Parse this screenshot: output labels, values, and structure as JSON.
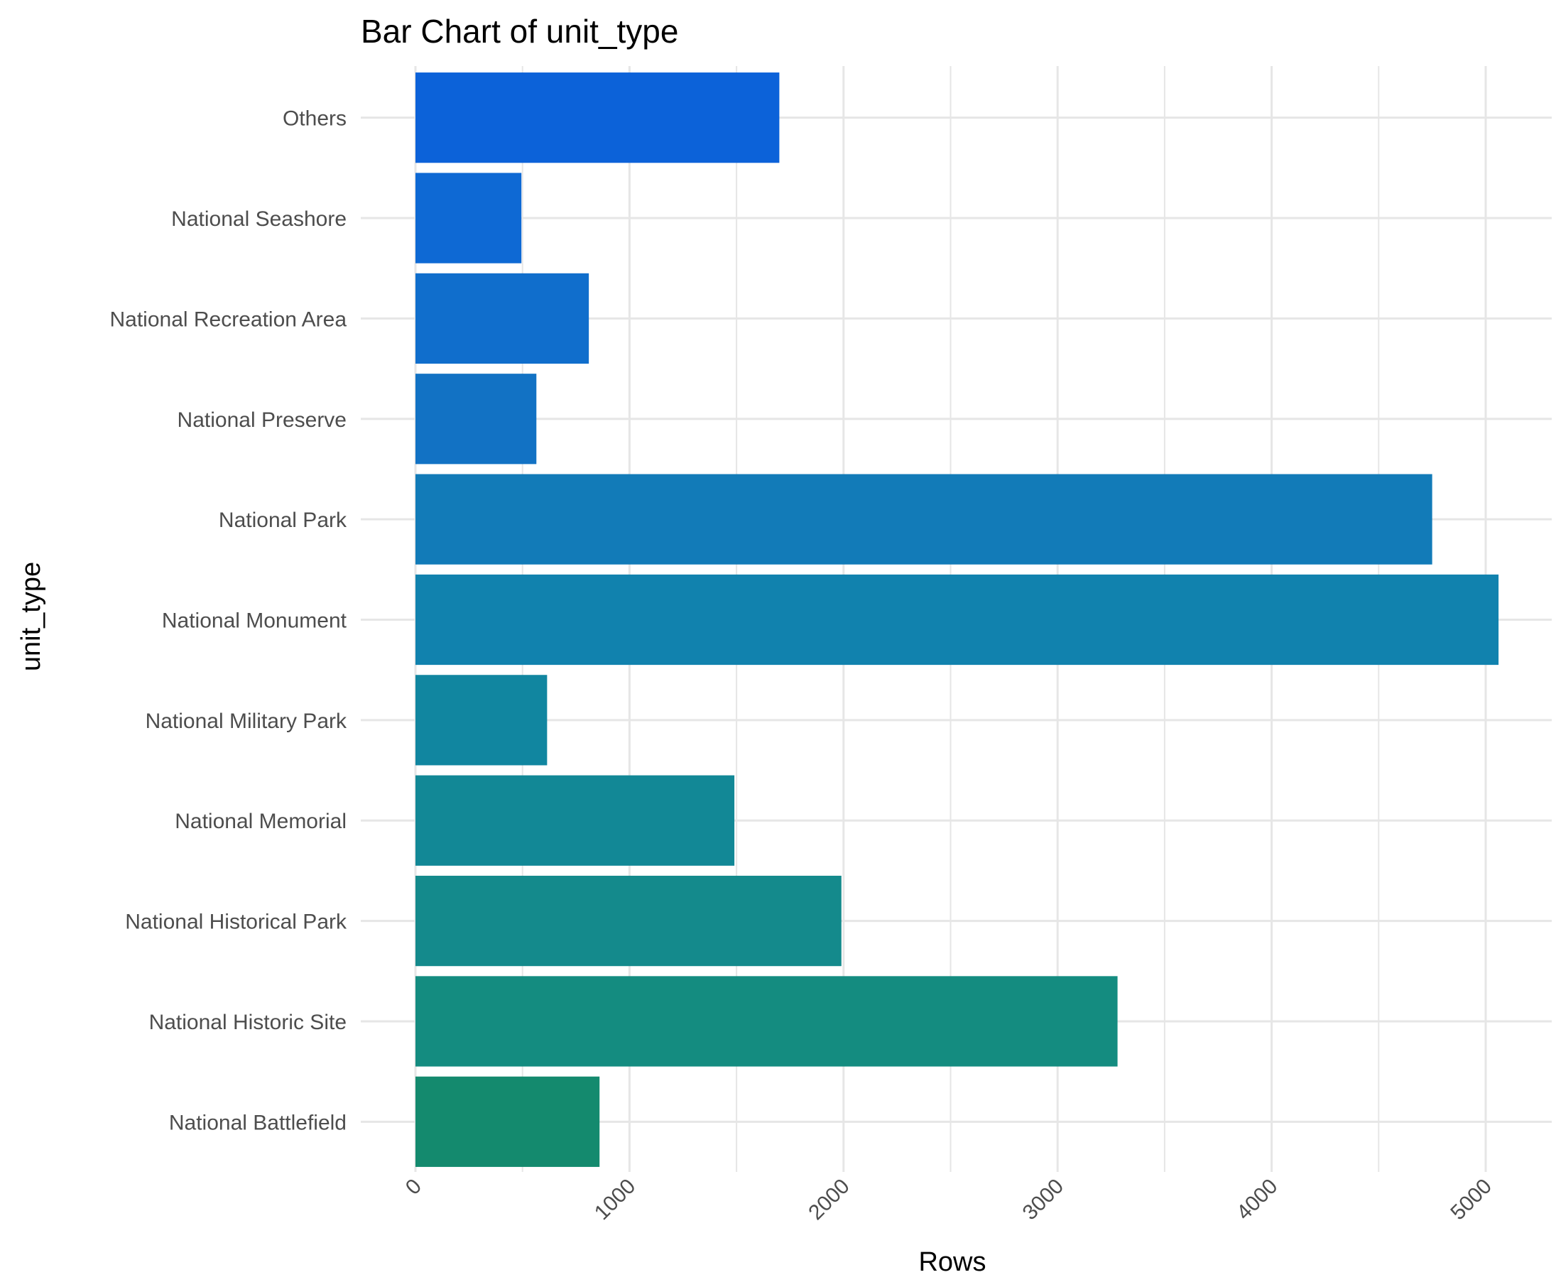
{
  "chart_data": {
    "type": "bar",
    "orientation": "horizontal",
    "title": "Bar Chart of unit_type",
    "xlabel": "Rows",
    "ylabel": "unit_type",
    "categories": [
      "National Battlefield",
      "National Historic Site",
      "National Historical Park",
      "National Memorial",
      "National Military Park",
      "National Monument",
      "National Park",
      "National Preserve",
      "National Recreation Area",
      "National Seashore",
      "Others"
    ],
    "values": [
      860,
      3280,
      1990,
      1490,
      615,
      5060,
      4750,
      565,
      810,
      495,
      1700
    ],
    "colors": [
      "#148A6E",
      "#148C80",
      "#148A8C",
      "#128896",
      "#1186A0",
      "#1182AE",
      "#127BB8",
      "#1272C4",
      "#106ECC",
      "#0E69D4",
      "#0C62D9"
    ],
    "xticks": [
      0,
      1000,
      2000,
      3000,
      4000,
      5000
    ],
    "xlim": [
      0,
      5060
    ],
    "grid": true,
    "legend": "none"
  }
}
